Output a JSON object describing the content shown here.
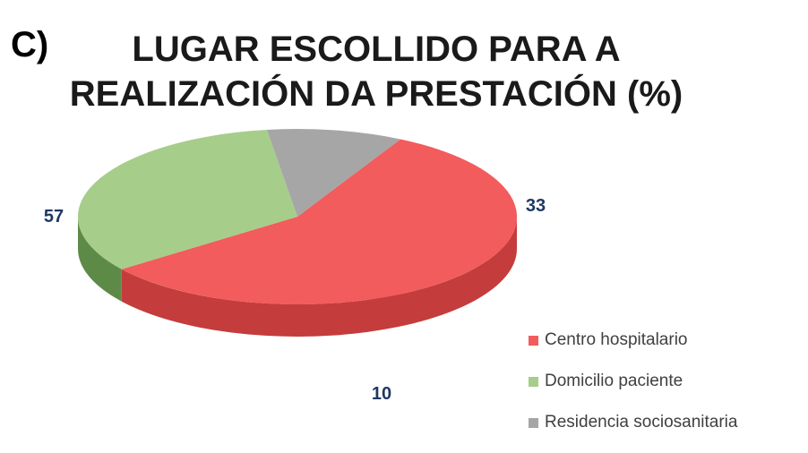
{
  "panel_letter": "C)",
  "chart_data": {
    "type": "pie",
    "title_lines": [
      "LUGAR ESCOLLIDO PARA A",
      "REALIZACIÓN DA PRESTACIÓN (%)"
    ],
    "legend_position": "bottom-right",
    "slices": [
      {
        "name": "Centro hospitalario",
        "value": 57,
        "label": "57",
        "color": "#f25c5c",
        "side_color": "#c43c3c"
      },
      {
        "name": "Domicilio paciente",
        "value": 33,
        "label": "33",
        "color": "#a6cd8a",
        "side_color": "#5e8a47"
      },
      {
        "name": "Residencia sociosanitaria",
        "value": 10,
        "label": "10",
        "color": "#a6a6a6",
        "side_color": "#6b6b6b"
      }
    ]
  }
}
